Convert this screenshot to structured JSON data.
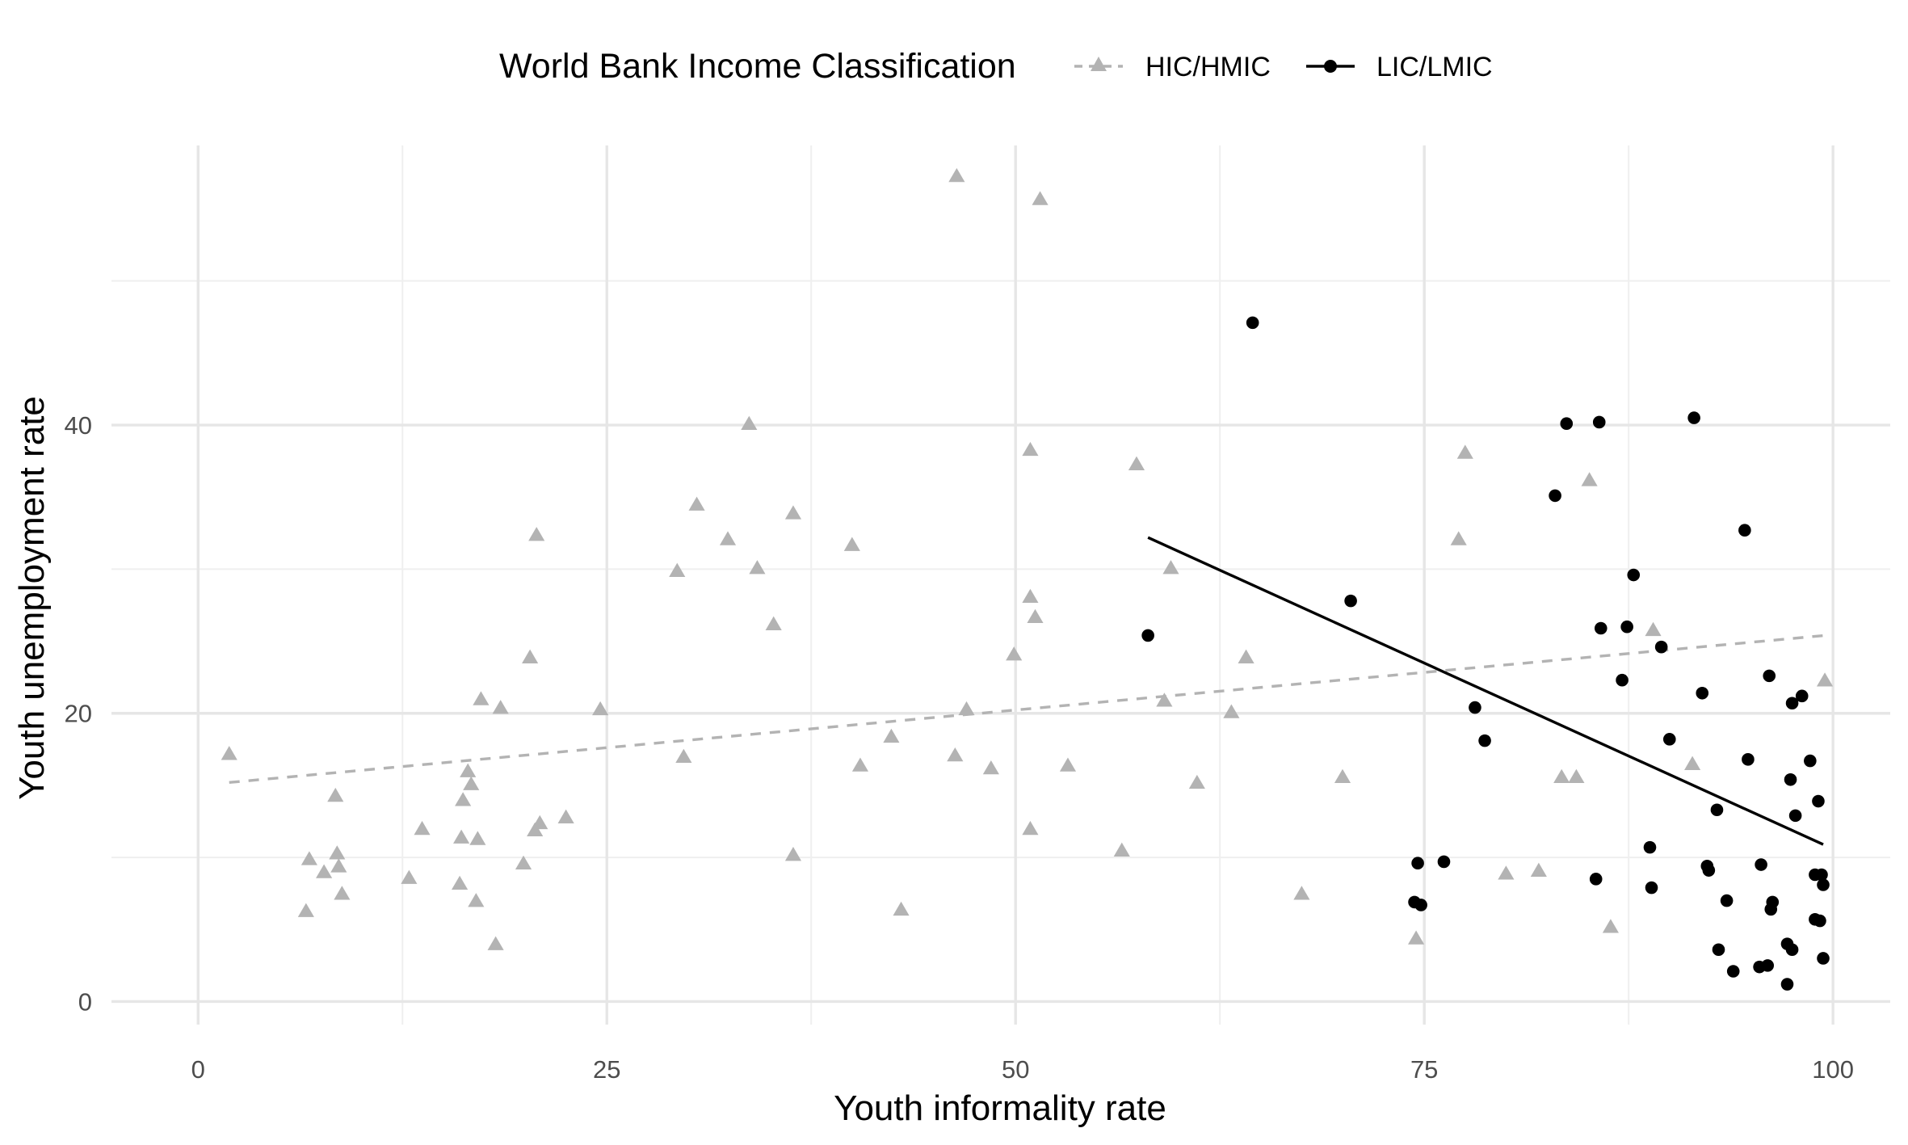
{
  "chart_data": {
    "type": "scatter",
    "title": "",
    "xlabel": "Youth informality rate",
    "ylabel": "Youth unemployment rate",
    "xlim": [
      -5.3,
      103.5
    ],
    "ylim": [
      -1.6,
      59.4
    ],
    "x_ticks": [
      0,
      25,
      50,
      75,
      100
    ],
    "x_tick_labels": [
      "0",
      "25",
      "50",
      "75",
      "100"
    ],
    "y_ticks": [
      0,
      20,
      40
    ],
    "y_tick_labels": [
      "0",
      "20",
      "40"
    ],
    "grid": true,
    "legend": {
      "title": "World Bank Income Classification",
      "position": "top"
    },
    "series": [
      {
        "name": "HIC/HMIC",
        "marker": "triangle",
        "color": "#b3b3b3",
        "points": [
          [
            1.9,
            17.2
          ],
          [
            6.6,
            6.3
          ],
          [
            6.8,
            9.9
          ],
          [
            7.7,
            9.0
          ],
          [
            8.4,
            14.3
          ],
          [
            8.5,
            10.3
          ],
          [
            8.6,
            9.4
          ],
          [
            8.8,
            7.5
          ],
          [
            12.9,
            8.6
          ],
          [
            13.7,
            12.0
          ],
          [
            16.0,
            8.2
          ],
          [
            16.1,
            11.4
          ],
          [
            16.2,
            14.0
          ],
          [
            16.5,
            16.0
          ],
          [
            16.7,
            15.1
          ],
          [
            17.0,
            7.0
          ],
          [
            17.1,
            11.3
          ],
          [
            17.3,
            21.0
          ],
          [
            18.2,
            4.0
          ],
          [
            18.5,
            20.4
          ],
          [
            19.9,
            9.6
          ],
          [
            20.3,
            23.9
          ],
          [
            20.6,
            11.9
          ],
          [
            20.7,
            32.4
          ],
          [
            20.9,
            12.4
          ],
          [
            22.5,
            12.8
          ],
          [
            24.6,
            20.3
          ],
          [
            29.3,
            29.9
          ],
          [
            29.7,
            17.0
          ],
          [
            30.5,
            34.5
          ],
          [
            32.4,
            32.1
          ],
          [
            33.7,
            40.1
          ],
          [
            34.2,
            30.1
          ],
          [
            35.2,
            26.2
          ],
          [
            36.4,
            33.9
          ],
          [
            36.4,
            10.2
          ],
          [
            40.0,
            31.7
          ],
          [
            40.5,
            16.4
          ],
          [
            42.4,
            18.4
          ],
          [
            43.0,
            6.4
          ],
          [
            46.3,
            17.1
          ],
          [
            46.4,
            57.3
          ],
          [
            47.0,
            20.3
          ],
          [
            48.5,
            16.2
          ],
          [
            49.9,
            24.1
          ],
          [
            50.9,
            28.1
          ],
          [
            50.9,
            38.3
          ],
          [
            50.9,
            12.0
          ],
          [
            51.2,
            26.7
          ],
          [
            51.5,
            55.7
          ],
          [
            53.2,
            16.4
          ],
          [
            56.5,
            10.5
          ],
          [
            57.4,
            37.3
          ],
          [
            59.1,
            20.9
          ],
          [
            59.5,
            30.1
          ],
          [
            61.1,
            15.2
          ],
          [
            63.2,
            20.1
          ],
          [
            64.1,
            23.9
          ],
          [
            67.5,
            7.5
          ],
          [
            70.0,
            15.6
          ],
          [
            74.5,
            4.4
          ],
          [
            77.1,
            32.1
          ],
          [
            77.5,
            38.1
          ],
          [
            80.0,
            8.9
          ],
          [
            82.0,
            9.1
          ],
          [
            83.4,
            15.6
          ],
          [
            84.3,
            15.6
          ],
          [
            85.1,
            36.2
          ],
          [
            86.4,
            5.2
          ],
          [
            89.0,
            25.8
          ],
          [
            91.4,
            16.5
          ],
          [
            99.5,
            22.3
          ]
        ]
      },
      {
        "name": "LIC/LMIC",
        "marker": "circle",
        "color": "#000000",
        "points": [
          [
            58.1,
            25.4
          ],
          [
            64.5,
            47.1
          ],
          [
            70.5,
            27.8
          ],
          [
            74.4,
            6.9
          ],
          [
            74.6,
            9.6
          ],
          [
            74.8,
            6.7
          ],
          [
            76.2,
            9.7
          ],
          [
            78.1,
            20.4
          ],
          [
            78.7,
            18.1
          ],
          [
            83.0,
            35.1
          ],
          [
            83.7,
            40.1
          ],
          [
            85.5,
            8.5
          ],
          [
            85.7,
            40.2
          ],
          [
            85.8,
            25.9
          ],
          [
            87.1,
            22.3
          ],
          [
            87.4,
            26.0
          ],
          [
            87.8,
            29.6
          ],
          [
            88.8,
            10.7
          ],
          [
            88.9,
            7.9
          ],
          [
            89.5,
            24.6
          ],
          [
            90.0,
            18.2
          ],
          [
            91.5,
            40.5
          ],
          [
            92.0,
            21.4
          ],
          [
            92.3,
            9.4
          ],
          [
            92.4,
            9.1
          ],
          [
            92.9,
            13.3
          ],
          [
            93.0,
            3.6
          ],
          [
            93.5,
            7.0
          ],
          [
            93.9,
            2.1
          ],
          [
            94.6,
            32.7
          ],
          [
            94.8,
            16.8
          ],
          [
            95.5,
            2.4
          ],
          [
            95.6,
            9.5
          ],
          [
            96.0,
            2.5
          ],
          [
            96.1,
            22.6
          ],
          [
            96.2,
            6.4
          ],
          [
            96.3,
            6.9
          ],
          [
            97.2,
            4.0
          ],
          [
            97.2,
            1.2
          ],
          [
            97.4,
            15.4
          ],
          [
            97.5,
            3.6
          ],
          [
            97.5,
            20.7
          ],
          [
            97.7,
            12.9
          ],
          [
            98.1,
            21.2
          ],
          [
            98.6,
            16.7
          ],
          [
            98.9,
            8.8
          ],
          [
            98.9,
            5.7
          ],
          [
            99.1,
            13.9
          ],
          [
            99.2,
            5.6
          ],
          [
            99.3,
            8.8
          ],
          [
            99.4,
            8.1
          ],
          [
            99.4,
            3.0
          ]
        ]
      }
    ],
    "trendlines": [
      {
        "series": "HIC/HMIC",
        "style": "dashed",
        "color": "#b3b3b3",
        "x": [
          1.9,
          99.5
        ],
        "y": [
          15.2,
          25.4
        ]
      },
      {
        "series": "LIC/LMIC",
        "style": "solid",
        "color": "#000000",
        "x": [
          58.1,
          99.4
        ],
        "y": [
          32.2,
          10.9
        ]
      }
    ]
  }
}
